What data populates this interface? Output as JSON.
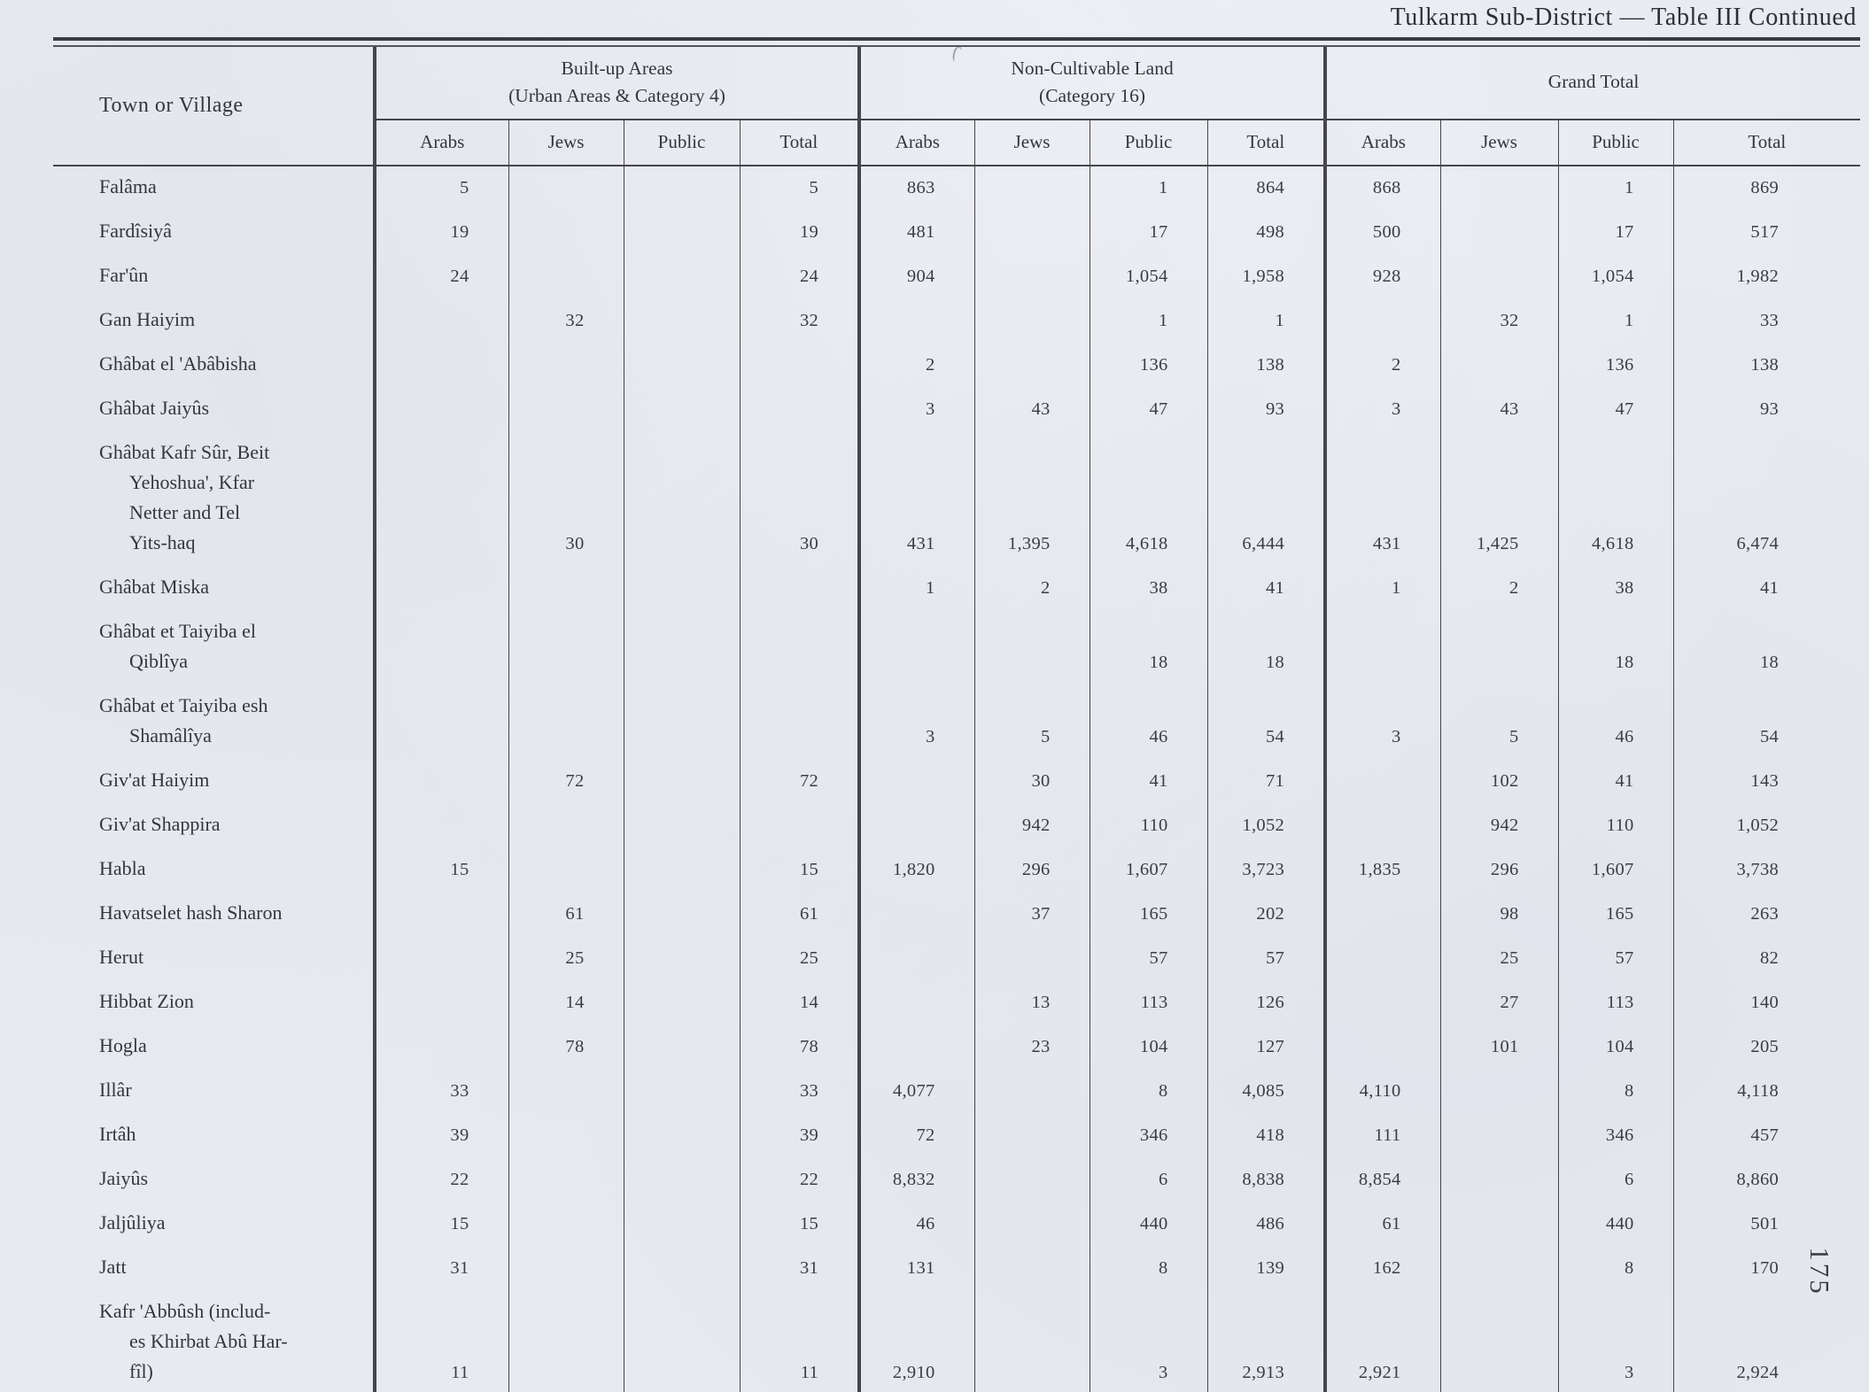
{
  "title": "Tulkarm Sub-District — Table III Continued",
  "page_number": "175",
  "table": {
    "row_header": "Town or Village",
    "groups": [
      {
        "label": "Built-up Areas\n(Urban Areas & Category 4)"
      },
      {
        "label": "Non-Cultivable Land\n(Category 16)"
      },
      {
        "label": "Grand Total"
      }
    ],
    "subcolumns": [
      "Arabs",
      "Jews",
      "Public",
      "Total"
    ],
    "rows": [
      {
        "name": "Falâma",
        "values": [
          "5",
          "",
          "",
          "5",
          "863",
          "",
          "1",
          "864",
          "868",
          "",
          "1",
          "869"
        ]
      },
      {
        "name": "Fardîsiyâ",
        "values": [
          "19",
          "",
          "",
          "19",
          "481",
          "",
          "17",
          "498",
          "500",
          "",
          "17",
          "517"
        ]
      },
      {
        "name": "Far'ûn",
        "values": [
          "24",
          "",
          "",
          "24",
          "904",
          "",
          "1,054",
          "1,958",
          "928",
          "",
          "1,054",
          "1,982"
        ]
      },
      {
        "name": "Gan Haiyim",
        "values": [
          "",
          "32",
          "",
          "32",
          "",
          "",
          "1",
          "1",
          "",
          "32",
          "1",
          "33"
        ]
      },
      {
        "name": "Ghâbat el 'Abâbisha",
        "values": [
          "",
          "",
          "",
          "",
          "2",
          "",
          "136",
          "138",
          "2",
          "",
          "136",
          "138"
        ]
      },
      {
        "name": "Ghâbat Jaiyûs",
        "values": [
          "",
          "",
          "",
          "",
          "3",
          "43",
          "47",
          "93",
          "3",
          "43",
          "47",
          "93"
        ]
      },
      {
        "name": "Ghâbat Kafr Sûr, Beit\nYehoshua', Kfar\nNetter and Tel\nYits-haq",
        "values": [
          "",
          "30",
          "",
          "30",
          "431",
          "1,395",
          "4,618",
          "6,444",
          "431",
          "1,425",
          "4,618",
          "6,474"
        ]
      },
      {
        "name": "Ghâbat Miska",
        "values": [
          "",
          "",
          "",
          "",
          "1",
          "2",
          "38",
          "41",
          "1",
          "2",
          "38",
          "41"
        ]
      },
      {
        "name": "Ghâbat et Taiyiba el\nQiblîya",
        "values": [
          "",
          "",
          "",
          "",
          "",
          "",
          "18",
          "18",
          "",
          "",
          "18",
          "18"
        ]
      },
      {
        "name": "Ghâbat et Taiyiba esh\nShamâlîya",
        "values": [
          "",
          "",
          "",
          "",
          "3",
          "5",
          "46",
          "54",
          "3",
          "5",
          "46",
          "54"
        ]
      },
      {
        "name": "Giv'at Haiyim",
        "values": [
          "",
          "72",
          "",
          "72",
          "",
          "30",
          "41",
          "71",
          "",
          "102",
          "41",
          "143"
        ]
      },
      {
        "name": "Giv'at Shappira",
        "values": [
          "",
          "",
          "",
          "",
          "",
          "942",
          "110",
          "1,052",
          "",
          "942",
          "110",
          "1,052"
        ]
      },
      {
        "name": "Habla",
        "values": [
          "15",
          "",
          "",
          "15",
          "1,820",
          "296",
          "1,607",
          "3,723",
          "1,835",
          "296",
          "1,607",
          "3,738"
        ]
      },
      {
        "name": "Havatselet hash Sharon",
        "values": [
          "",
          "61",
          "",
          "61",
          "",
          "37",
          "165",
          "202",
          "",
          "98",
          "165",
          "263"
        ]
      },
      {
        "name": "Herut",
        "values": [
          "",
          "25",
          "",
          "25",
          "",
          "",
          "57",
          "57",
          "",
          "25",
          "57",
          "82"
        ]
      },
      {
        "name": "Hibbat Zion",
        "values": [
          "",
          "14",
          "",
          "14",
          "",
          "13",
          "113",
          "126",
          "",
          "27",
          "113",
          "140"
        ]
      },
      {
        "name": "Hogla",
        "values": [
          "",
          "78",
          "",
          "78",
          "",
          "23",
          "104",
          "127",
          "",
          "101",
          "104",
          "205"
        ]
      },
      {
        "name": "Illâr",
        "values": [
          "33",
          "",
          "",
          "33",
          "4,077",
          "",
          "8",
          "4,085",
          "4,110",
          "",
          "8",
          "4,118"
        ]
      },
      {
        "name": "Irtâh",
        "values": [
          "39",
          "",
          "",
          "39",
          "72",
          "",
          "346",
          "418",
          "111",
          "",
          "346",
          "457"
        ]
      },
      {
        "name": "Jaiyûs",
        "values": [
          "22",
          "",
          "",
          "22",
          "8,832",
          "",
          "6",
          "8,838",
          "8,854",
          "",
          "6",
          "8,860"
        ]
      },
      {
        "name": "Jaljûliya",
        "values": [
          "15",
          "",
          "",
          "15",
          "46",
          "",
          "440",
          "486",
          "61",
          "",
          "440",
          "501"
        ]
      },
      {
        "name": "Jatt",
        "values": [
          "31",
          "",
          "",
          "31",
          "131",
          "",
          "8",
          "139",
          "162",
          "",
          "8",
          "170"
        ]
      },
      {
        "name": "Kafr 'Abbûsh (includ-\nes Khirbat Abû Har-\nfîl)",
        "values": [
          "11",
          "",
          "",
          "11",
          "2,910",
          "",
          "3",
          "2,913",
          "2,921",
          "",
          "3",
          "2,924"
        ]
      }
    ]
  },
  "colors": {
    "paper": "#e8eaf1",
    "ink": "#35363d"
  }
}
